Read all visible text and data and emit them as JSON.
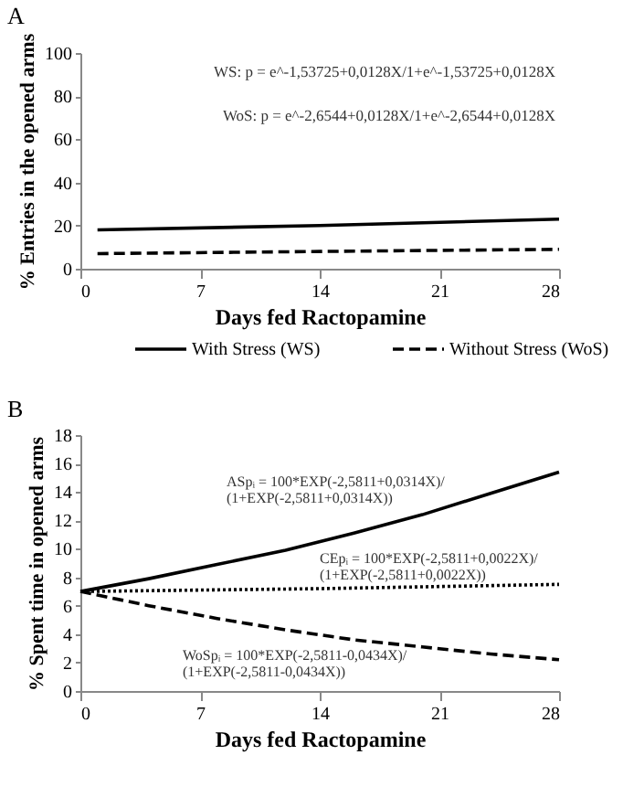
{
  "chart_data": [
    {
      "type": "line",
      "title": "A",
      "xlabel": "Days fed Ractopamine",
      "ylabel": "% Entries in the opened arms",
      "xlim": [
        0,
        28
      ],
      "ylim": [
        0,
        100
      ],
      "xticks": [
        0,
        7,
        14,
        21,
        28
      ],
      "yticks": [
        0,
        20,
        40,
        60,
        80,
        100
      ],
      "grid": false,
      "legend": "bottom",
      "marker": "none",
      "series": [
        {
          "name": "With Stress (WS)",
          "color": "#000000",
          "line_style": "solid",
          "x": [
            1,
            14,
            28
          ],
          "values": [
            18,
            20,
            23
          ]
        },
        {
          "name": "Without Stress (WoS)",
          "color": "#000000",
          "line_style": "dashed",
          "x": [
            1,
            14,
            28
          ],
          "values": [
            7,
            8,
            9
          ]
        }
      ],
      "annotations": [
        "WS: p = e^-1,53725+0,0128X/1+e^-1,53725+0,0128X",
        "WoS: p = e^-2,6544+0,0128X/1+e^-2,6544+0,0128X"
      ]
    },
    {
      "type": "line",
      "title": "B",
      "xlabel": "Days fed Ractopamine",
      "ylabel": "% Spent time in opened arms",
      "xlim": [
        0,
        28
      ],
      "ylim": [
        0,
        18
      ],
      "xticks": [
        0,
        7,
        14,
        21,
        28
      ],
      "yticks": [
        0,
        2,
        4,
        6,
        8,
        10,
        12,
        14,
        16,
        18
      ],
      "grid": false,
      "marker": "none",
      "series": [
        {
          "color": "#000000",
          "line_style": "solid",
          "x": [
            0,
            4,
            8,
            12,
            16,
            20,
            24,
            28
          ],
          "values": [
            7.0,
            7.9,
            8.9,
            9.9,
            11.1,
            12.4,
            13.9,
            15.4
          ]
        },
        {
          "color": "#000000",
          "line_style": "dotted",
          "x": [
            0,
            14,
            28
          ],
          "values": [
            7.0,
            7.2,
            7.5
          ]
        },
        {
          "color": "#000000",
          "line_style": "dashed",
          "x": [
            0,
            4,
            8,
            12,
            16,
            20,
            24,
            28
          ],
          "values": [
            7.0,
            6.0,
            5.1,
            4.3,
            3.6,
            3.1,
            2.6,
            2.2
          ]
        }
      ],
      "annotations": [
        "ASpᵢ = 100*EXP(-2,5811+0,0314X)/\n(1+EXP(-2,5811+0,0314X))",
        "CEpᵢ = 100*EXP(-2,5811+0,0022X)/\n(1+EXP(-2,5811+0,0022X))",
        "WoSpᵢ = 100*EXP(-2,5811-0,0434X)/\n(1+EXP(-2,5811-0,0434X))"
      ]
    }
  ]
}
